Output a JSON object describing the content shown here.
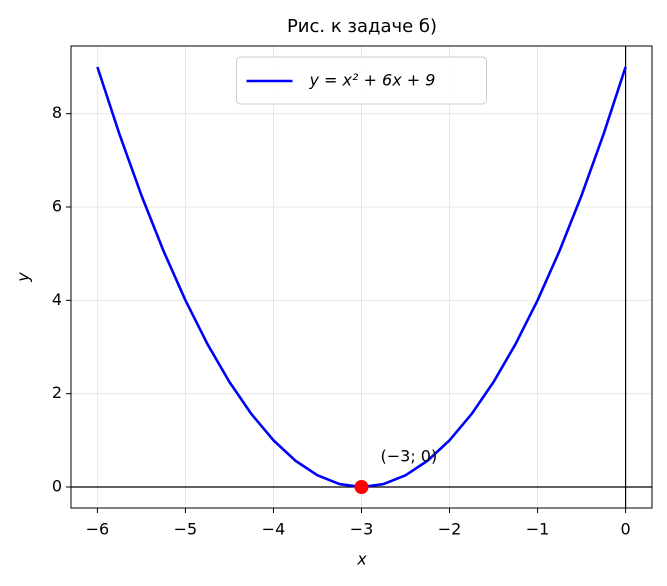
{
  "chart_data": {
    "type": "line",
    "title": "Рис. к задаче б)",
    "x_label": "x",
    "y_label": "y",
    "series": [
      {
        "name": "y = x² + 6x + 9",
        "color": "#0000ff",
        "x": [
          -6,
          -5.75,
          -5.5,
          -5.25,
          -5,
          -4.75,
          -4.5,
          -4.25,
          -4,
          -3.75,
          -3.5,
          -3.25,
          -3,
          -2.75,
          -2.5,
          -2.25,
          -2,
          -1.75,
          -1.5,
          -1.25,
          -1,
          -0.75,
          -0.5,
          -0.25,
          0
        ],
        "values": [
          9,
          7.5625,
          6.25,
          5.0625,
          4,
          3.0625,
          2.25,
          1.5625,
          1,
          0.5625,
          0.25,
          0.0625,
          0,
          0.0625,
          0.25,
          0.5625,
          1,
          1.5625,
          2.25,
          3.0625,
          4,
          5.0625,
          6.25,
          7.5625,
          9
        ]
      }
    ],
    "vertex": {
      "x": -3,
      "y": 0,
      "color": "#ff0000",
      "label": "(−3; 0)"
    },
    "axhline": 0,
    "axvline": 0,
    "xlim": [
      -6.3,
      0.3
    ],
    "ylim": [
      -0.45,
      9.45
    ],
    "xticks": [
      {
        "value": -6,
        "label": "−6"
      },
      {
        "value": -5,
        "label": "−5"
      },
      {
        "value": -4,
        "label": "−4"
      },
      {
        "value": -3,
        "label": "−3"
      },
      {
        "value": -2,
        "label": "−2"
      },
      {
        "value": -1,
        "label": "−1"
      },
      0
    ],
    "yticks": [
      0,
      2,
      4,
      6,
      8
    ],
    "grid": true,
    "legend": "upper center"
  }
}
